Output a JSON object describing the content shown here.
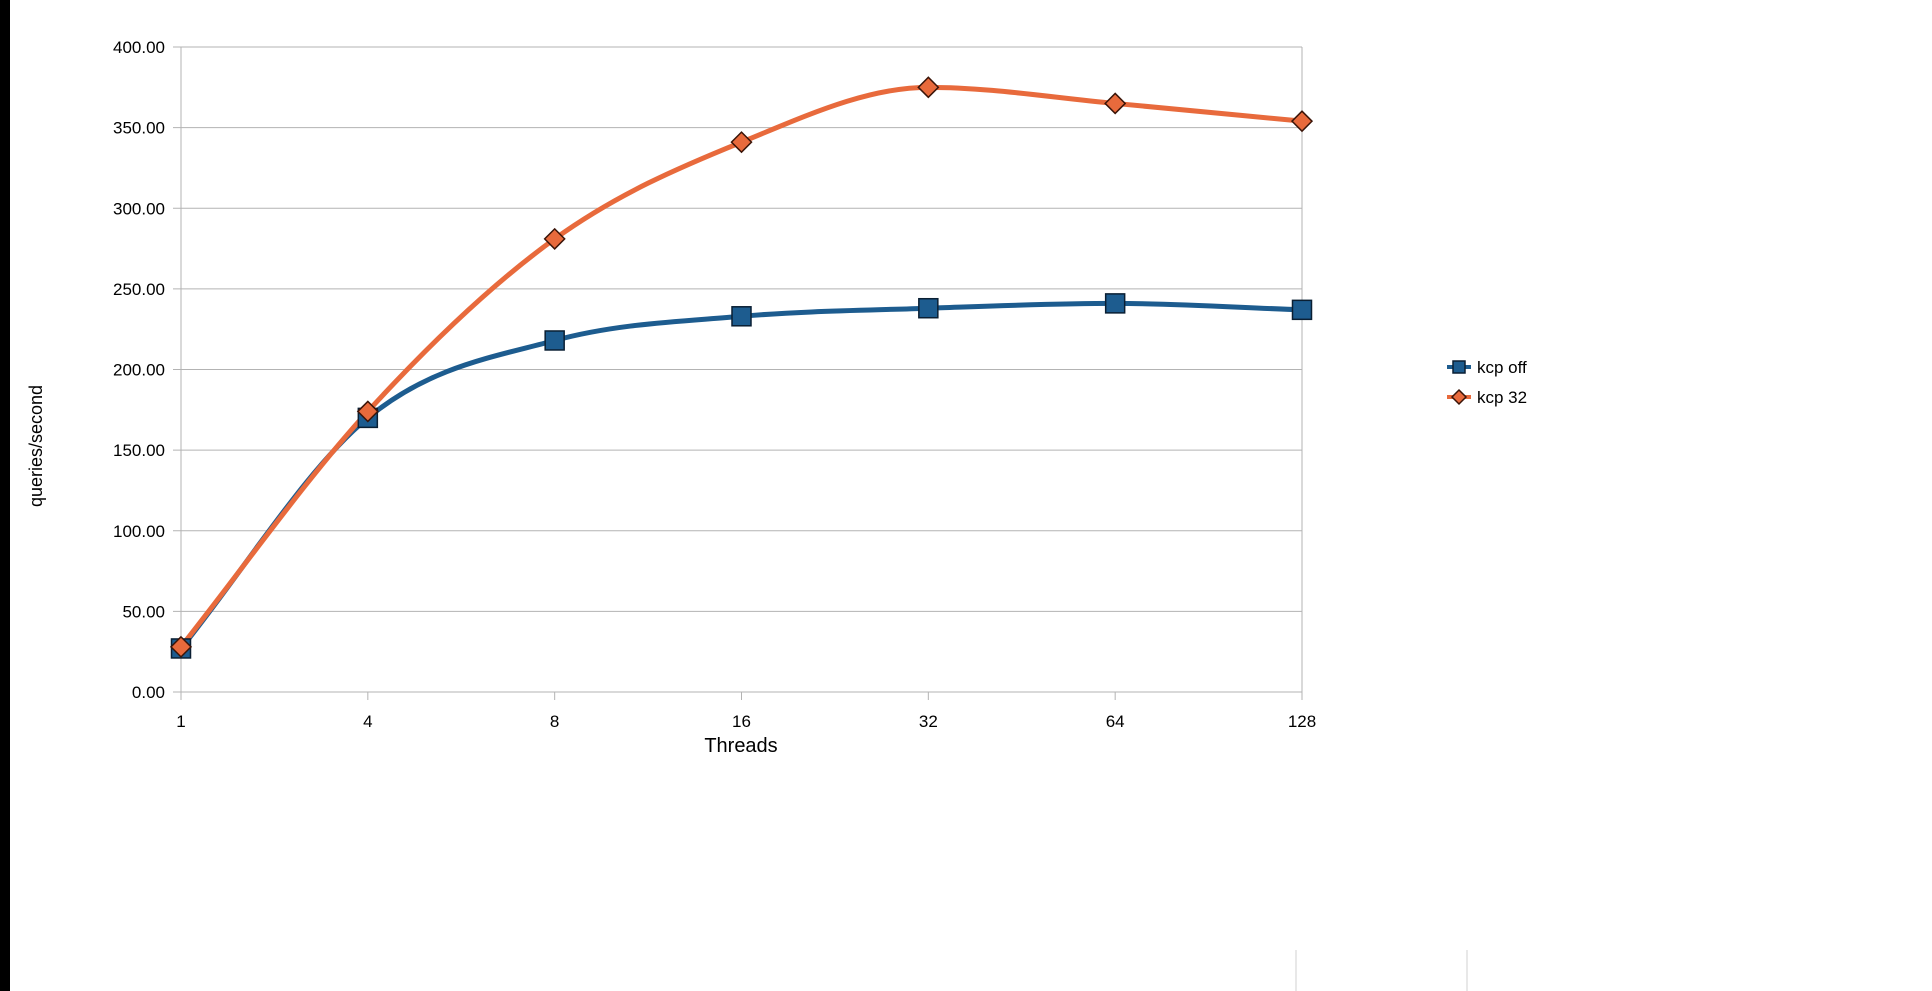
{
  "chart_data": {
    "type": "line",
    "title": "",
    "xlabel": "Threads",
    "ylabel": "queries/second",
    "categories": [
      "1",
      "4",
      "8",
      "16",
      "32",
      "64",
      "128"
    ],
    "ylim": [
      0,
      400
    ],
    "yticks": [
      "0.00",
      "50.00",
      "100.00",
      "150.00",
      "200.00",
      "250.00",
      "300.00",
      "350.00",
      "400.00"
    ],
    "grid": true,
    "smooth": true,
    "legend_position": "right",
    "series": [
      {
        "name": "kcp off",
        "values": [
          27,
          170,
          218,
          233,
          238,
          241,
          237
        ],
        "color": "#1d5c8f",
        "marker": "square"
      },
      {
        "name": "kcp 32",
        "values": [
          28,
          174,
          281,
          341,
          375,
          365,
          354
        ],
        "color": "#e86a3c",
        "marker": "diamond"
      }
    ]
  }
}
